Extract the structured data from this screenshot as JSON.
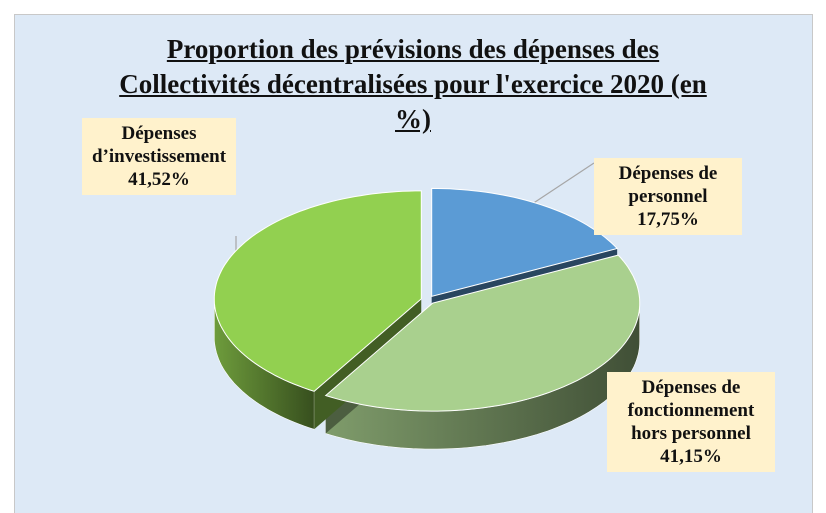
{
  "chart_data": {
    "type": "pie3d",
    "title": "Proportion des prévisions des dépenses des Collectivités décentralisées pour l'exercice 2020 (en %)",
    "categories": [
      "Dépenses de personnel",
      "Dépenses de fonctionnement hors personnel",
      "Dépenses d’investissement"
    ],
    "values": [
      17.75,
      41.15,
      41.52
    ],
    "value_labels": [
      "17,75%",
      "41,15%",
      "41,52%"
    ],
    "colors": [
      "#5b9bd5",
      "#a9d08e",
      "#92d050"
    ]
  }
}
